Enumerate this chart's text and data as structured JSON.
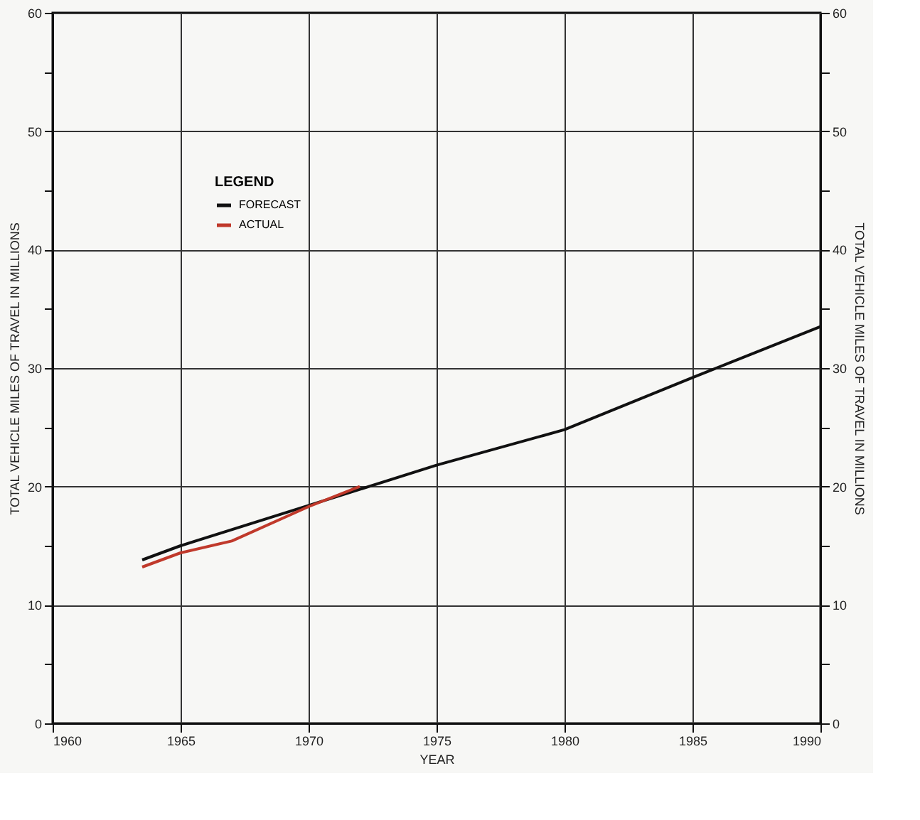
{
  "chart_data": {
    "type": "line",
    "xlabel": "YEAR",
    "ylabel": "TOTAL VEHICLE MILES OF TRAVEL  IN MILLIONS",
    "y2label": "TOTAL VEHICLE MILES OF TRAVEL  IN MILLIONS",
    "legend_title": "LEGEND",
    "legend": "top left",
    "grid": true,
    "marker": "none",
    "line_style": "solid",
    "xlim": [
      1960,
      1990
    ],
    "xticks": [
      1960,
      1965,
      1970,
      1975,
      1980,
      1985,
      1990
    ],
    "ylim": [
      0,
      60
    ],
    "yticks": [
      0,
      {
        "value": 5,
        "label": null
      },
      10,
      {
        "value": 15,
        "label": null
      },
      20,
      {
        "value": 25,
        "label": null
      },
      30,
      {
        "value": 35,
        "label": null
      },
      40,
      {
        "value": 45,
        "label": null
      },
      50,
      {
        "value": 55,
        "label": null
      },
      60
    ],
    "y2lim": [
      0,
      60
    ],
    "y2ticks": [
      0,
      {
        "value": 5,
        "label": null
      },
      10,
      {
        "value": 15,
        "label": null
      },
      20,
      {
        "value": 25,
        "label": null
      },
      30,
      {
        "value": 35,
        "label": null
      },
      40,
      {
        "value": 45,
        "label": null
      },
      50,
      {
        "value": 55,
        "label": null
      },
      60
    ],
    "series": [
      {
        "name": "FORECAST",
        "color": "#111111",
        "x": [
          1963.5,
          1965,
          1970,
          1975,
          1980,
          1985,
          1990
        ],
        "values": [
          13.8,
          15.0,
          18.4,
          21.8,
          24.8,
          29.2,
          33.5
        ]
      },
      {
        "name": "ACTUAL",
        "color": "#c0392b",
        "axis": "y2",
        "x": [
          1963.5,
          1965,
          1967,
          1970,
          1972
        ],
        "values": [
          13.2,
          14.4,
          15.4,
          18.3,
          20.0
        ]
      }
    ]
  }
}
